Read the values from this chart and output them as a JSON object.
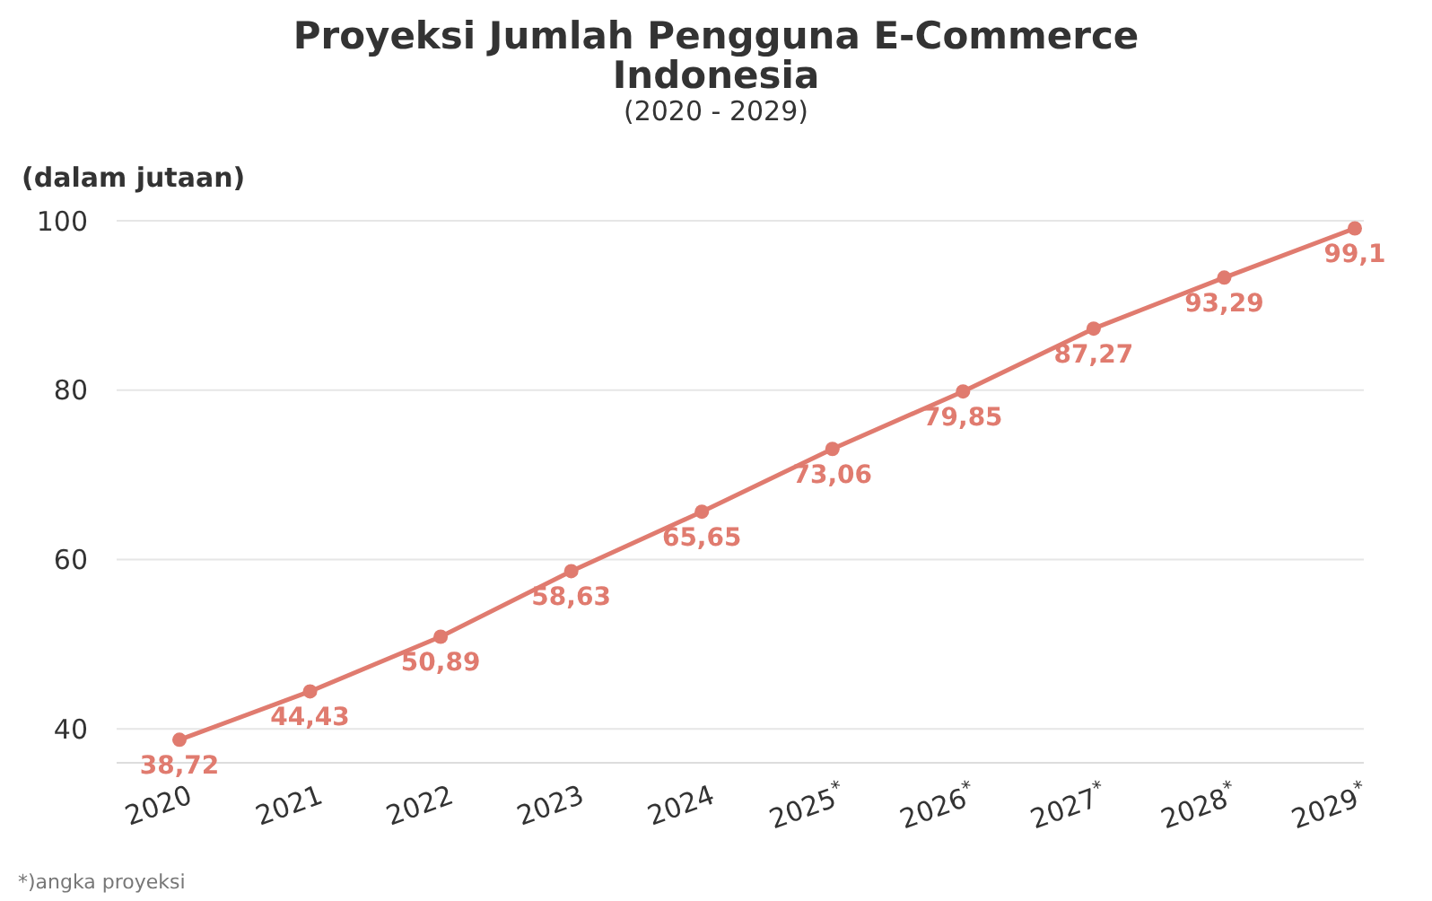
{
  "chart_data": {
    "type": "line",
    "title": "Proyeksi Jumlah Pengguna E-Commerce Indonesia",
    "subtitle": "(2020 - 2029)",
    "ylabel": "(dalam jutaan)",
    "categories": [
      "2020",
      "2021",
      "2022",
      "2023",
      "2024",
      "2025$^{*}$",
      "2026$^{*}$",
      "2027$^{*}$",
      "2028$^{*}$",
      "2029$^{*}$"
    ],
    "series": [
      {
        "color": "#e07b6f",
        "values": [
          38.72,
          44.43,
          50.89,
          58.63,
          65.65,
          73.06,
          79.85,
          87.27,
          93.29,
          99.1
        ],
        "value_labels": [
          "38,72",
          "44,43",
          "50,89",
          "58,63",
          "65,65",
          "73,06",
          "79,85",
          "87,27",
          "93,29",
          "99,1"
        ]
      }
    ],
    "ylim": [
      36,
      100
    ],
    "yticks": [
      40,
      60,
      80,
      100
    ],
    "grid": "y",
    "marker": "circle",
    "line_style": "solid",
    "annotations": [
      "*)angka proyeksi"
    ]
  }
}
